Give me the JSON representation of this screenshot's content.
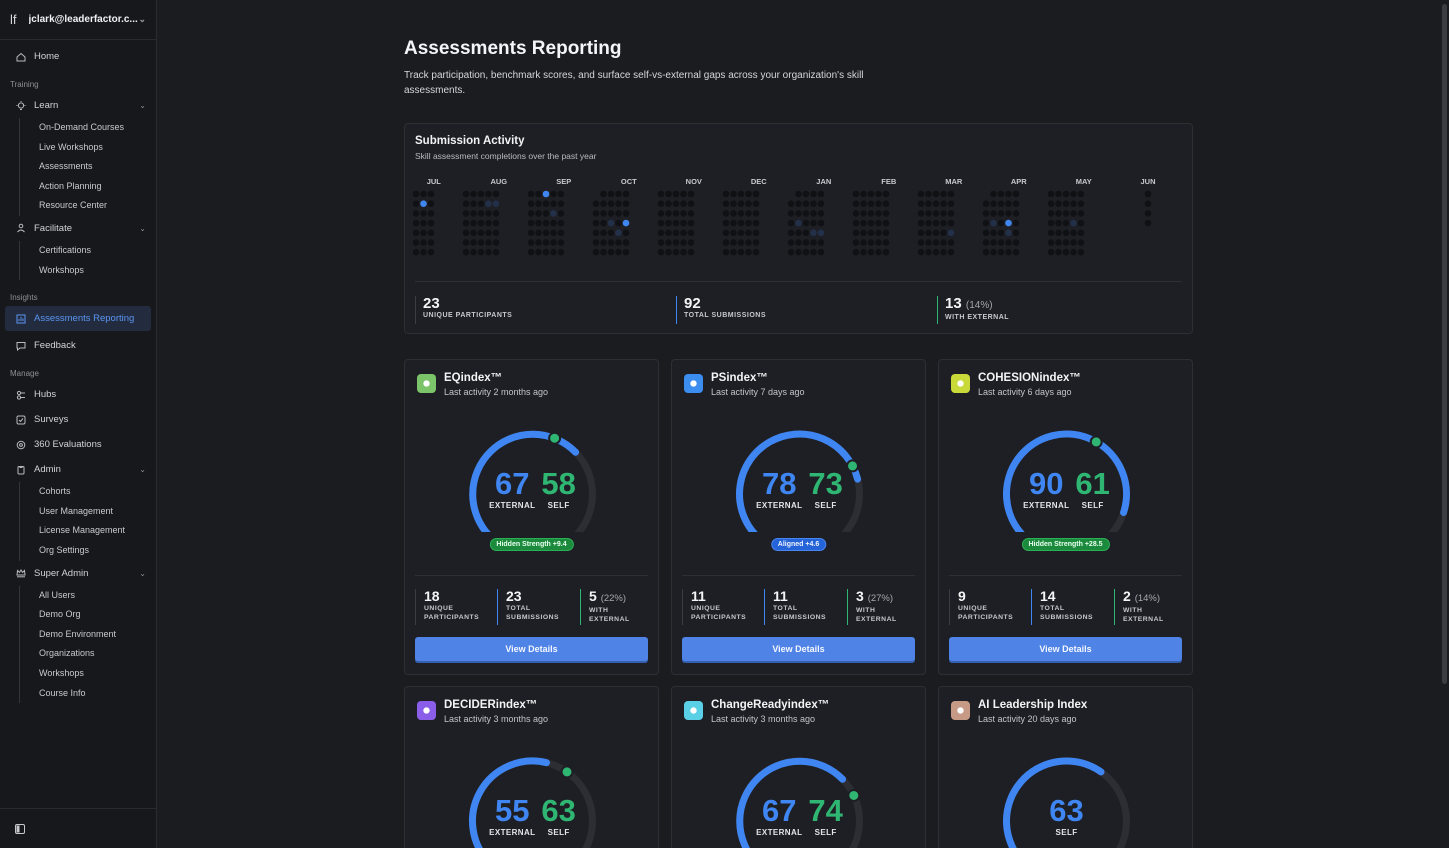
{
  "sidebar": {
    "logo": "lf",
    "account": "jclark@leaderfactor.c...",
    "home": "Home",
    "sections": {
      "training": "Training",
      "insights": "Insights",
      "manage": "Manage"
    },
    "learn": {
      "label": "Learn",
      "items": [
        "On-Demand Courses",
        "Live Workshops",
        "Assessments",
        "Action Planning",
        "Resource Center"
      ]
    },
    "facilitate": {
      "label": "Facilitate",
      "items": [
        "Certifications",
        "Workshops"
      ]
    },
    "assessments_reporting": "Assessments Reporting",
    "feedback": "Feedback",
    "hubs": "Hubs",
    "surveys": "Surveys",
    "evaluations": "360 Evaluations",
    "admin": {
      "label": "Admin",
      "items": [
        "Cohorts",
        "User Management",
        "License Management",
        "Org Settings"
      ]
    },
    "super_admin": {
      "label": "Super Admin",
      "items": [
        "All Users",
        "Demo Org",
        "Demo Environment",
        "Organizations",
        "Workshops",
        "Course Info"
      ]
    }
  },
  "page": {
    "title": "Assessments Reporting",
    "description": "Track participation, benchmark scores, and surface self-vs-external gaps across your organization's skill assessments."
  },
  "activity": {
    "title": "Submission Activity",
    "subtitle": "Skill assessment completions over the past year",
    "months": [
      "JUL",
      "AUG",
      "SEP",
      "OCT",
      "NOV",
      "DEC",
      "JAN",
      "FEB",
      "MAR",
      "APR",
      "MAY",
      "JUN"
    ],
    "stats": [
      {
        "value": "23",
        "extra": "",
        "label": "UNIQUE PARTICIPANTS"
      },
      {
        "value": "92",
        "extra": "",
        "label": "TOTAL SUBMISSIONS"
      },
      {
        "value": "13",
        "extra": "(14%)",
        "label": "WITH EXTERNAL"
      }
    ]
  },
  "colors": {
    "external": "#3f86f2",
    "self": "#2fb673",
    "track": "#2c2e34"
  },
  "cards": [
    {
      "name": "EQindex™",
      "activity": "Last activity 2 months ago",
      "icon_color": "#7cc46a",
      "icon_name": "eq-icon",
      "external": 67,
      "self": 58,
      "badge": "Hidden Strength +9.4",
      "badge_type": "green",
      "participants": "18",
      "submissions": "23",
      "with_external": "5",
      "with_external_pct": "(22%)",
      "button": "View Details",
      "label_unique": "UNIQUE PARTICIPANTS",
      "label_total": "TOTAL SUBMISSIONS",
      "label_with": "WITH EXTERNAL",
      "label_external": "EXTERNAL",
      "label_self": "SELF"
    },
    {
      "name": "PSindex™",
      "activity": "Last activity 7 days ago",
      "icon_color": "#3b8df0",
      "icon_name": "ps-icon",
      "external": 78,
      "self": 73,
      "badge": "Aligned +4.6",
      "badge_type": "blue",
      "participants": "11",
      "submissions": "11",
      "with_external": "3",
      "with_external_pct": "(27%)",
      "button": "View Details",
      "label_unique": "UNIQUE PARTICIPANTS",
      "label_total": "TOTAL SUBMISSIONS",
      "label_with": "WITH EXTERNAL",
      "label_external": "EXTERNAL",
      "label_self": "SELF"
    },
    {
      "name": "COHESIONindex™",
      "activity": "Last activity 6 days ago",
      "icon_color": "#c9d93a",
      "icon_name": "cohesion-icon",
      "external": 90,
      "self": 61,
      "badge": "Hidden Strength +28.5",
      "badge_type": "green",
      "participants": "9",
      "submissions": "14",
      "with_external": "2",
      "with_external_pct": "(14%)",
      "button": "View Details",
      "label_unique": "UNIQUE PARTICIPANTS",
      "label_total": "TOTAL SUBMISSIONS",
      "label_with": "WITH EXTERNAL",
      "label_external": "EXTERNAL",
      "label_self": "SELF"
    },
    {
      "name": "DECIDERindex™",
      "activity": "Last activity 3 months ago",
      "icon_color": "#8a5ee8",
      "icon_name": "decider-icon",
      "external": 55,
      "self": 63,
      "label_external": "EXTERNAL",
      "label_self": "SELF"
    },
    {
      "name": "ChangeReadyindex™",
      "activity": "Last activity 3 months ago",
      "icon_color": "#5ad0e6",
      "icon_name": "changeready-icon",
      "external": 67,
      "self": 74,
      "label_external": "EXTERNAL",
      "label_self": "SELF"
    },
    {
      "name": "AI Leadership Index",
      "activity": "Last activity 20 days ago",
      "icon_color": "#c79a86",
      "icon_name": "ai-leadership-icon",
      "self_only": 63,
      "label_self": "SELF"
    }
  ]
}
